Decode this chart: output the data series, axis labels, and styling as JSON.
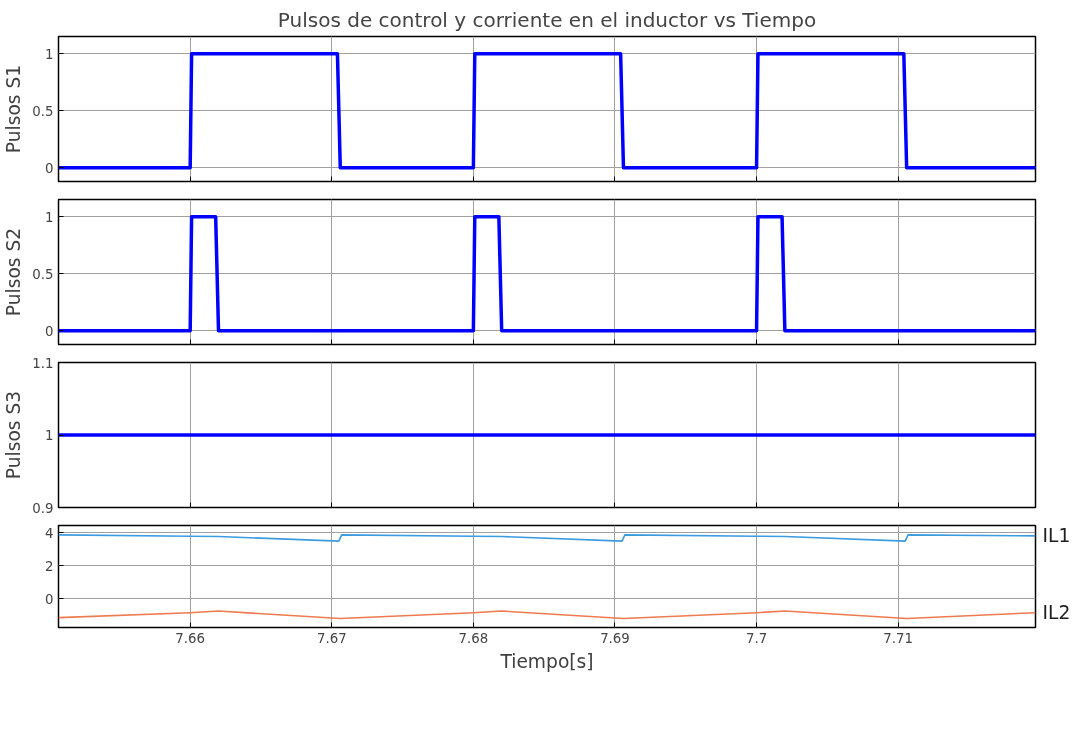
{
  "chart_data": [
    {
      "type": "line",
      "title": "Pulsos de control y corriente en el inductor vs Tiempo",
      "ylabel": "Pulsos S1",
      "xlim": [
        7.6507,
        7.7197
      ],
      "xticks": [
        {
          "value": 7.66,
          "label": null
        },
        {
          "value": 7.67,
          "label": null
        },
        {
          "value": 7.68,
          "label": null
        },
        {
          "value": 7.69,
          "label": null
        },
        {
          "value": 7.7,
          "label": null
        },
        {
          "value": 7.71,
          "label": null
        }
      ],
      "ylim": [
        -0.12,
        1.15
      ],
      "yticks": [
        0,
        0.5,
        1
      ],
      "grid": true,
      "tick_labels": "y",
      "series": [
        {
          "color": "#0000ff",
          "x": [
            7.6507,
            7.66,
            7.6601,
            7.6704,
            7.6706,
            7.68,
            7.6801,
            7.6904,
            7.6906,
            7.7,
            7.7001,
            7.7104,
            7.7106,
            7.7197
          ],
          "values": [
            0,
            0,
            1,
            1,
            0,
            0,
            1,
            1,
            0,
            0,
            1,
            1,
            0,
            0
          ]
        }
      ]
    },
    {
      "type": "line",
      "ylabel": "Pulsos S2",
      "xlim": [
        7.6507,
        7.7197
      ],
      "xticks": [
        {
          "value": 7.66,
          "label": null
        },
        {
          "value": 7.67,
          "label": null
        },
        {
          "value": 7.68,
          "label": null
        },
        {
          "value": 7.69,
          "label": null
        },
        {
          "value": 7.7,
          "label": null
        },
        {
          "value": 7.71,
          "label": null
        }
      ],
      "ylim": [
        -0.12,
        1.15
      ],
      "yticks": [
        0,
        0.5,
        1
      ],
      "grid": true,
      "tick_labels": "y",
      "series": [
        {
          "color": "#0000ff",
          "x": [
            7.6507,
            7.66,
            7.6601,
            7.6618,
            7.662,
            7.68,
            7.6801,
            7.6818,
            7.682,
            7.7,
            7.7001,
            7.7018,
            7.702,
            7.7197
          ],
          "values": [
            0,
            0,
            1,
            1,
            0,
            0,
            1,
            1,
            0,
            0,
            1,
            1,
            0,
            0
          ]
        }
      ]
    },
    {
      "type": "line",
      "ylabel": "Pulsos S3",
      "xlim": [
        7.6507,
        7.7197
      ],
      "xticks": [
        {
          "value": 7.66,
          "label": null
        },
        {
          "value": 7.67,
          "label": null
        },
        {
          "value": 7.68,
          "label": null
        },
        {
          "value": 7.69,
          "label": null
        },
        {
          "value": 7.7,
          "label": null
        },
        {
          "value": 7.71,
          "label": null
        }
      ],
      "ylim": [
        0.9,
        1.1
      ],
      "yticks": [
        0.9,
        1,
        1.1
      ],
      "grid": true,
      "tick_labels": "y",
      "series": [
        {
          "color": "#0000ff",
          "x": [
            7.6507,
            7.7197
          ],
          "values": [
            1,
            1
          ]
        }
      ]
    },
    {
      "type": "line",
      "xlabel": "Tiempo[s]",
      "xlim": [
        7.6507,
        7.7197
      ],
      "xticks": [
        7.66,
        7.67,
        7.68,
        7.69,
        {
          "value": 7.7,
          "label": "7.7"
        },
        7.71
      ],
      "ylim": [
        -1.75,
        4.45
      ],
      "yticks": [
        0,
        2,
        4
      ],
      "grid": true,
      "series": [
        {
          "name": "IL1",
          "color": "#3d9be0",
          "x": [
            7.6507,
            7.66,
            7.662,
            7.6705,
            7.6707,
            7.68,
            7.682,
            7.6905,
            7.6907,
            7.7,
            7.702,
            7.7105,
            7.7107,
            7.7197
          ],
          "values": [
            3.88,
            3.8,
            3.78,
            3.5,
            3.88,
            3.8,
            3.78,
            3.5,
            3.88,
            3.8,
            3.78,
            3.5,
            3.88,
            3.82
          ]
        },
        {
          "name": "IL2",
          "color": "#ee7b4f",
          "x": [
            7.6507,
            7.66,
            7.662,
            7.6706,
            7.68,
            7.682,
            7.6906,
            7.7,
            7.702,
            7.7106,
            7.7197
          ],
          "values": [
            -1.15,
            -0.85,
            -0.75,
            -1.2,
            -0.85,
            -0.75,
            -1.2,
            -0.85,
            -0.75,
            -1.2,
            -0.85
          ]
        }
      ]
    }
  ]
}
